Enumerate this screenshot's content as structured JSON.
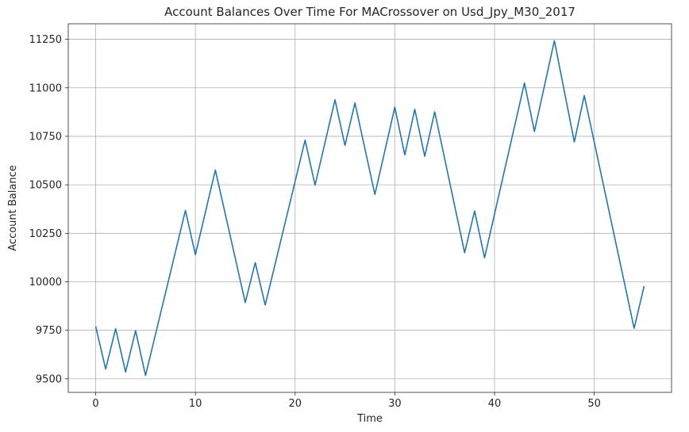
{
  "chart_data": {
    "type": "line",
    "title": "Account Balances Over Time For MACrossover on Usd_Jpy_M30_2017",
    "xlabel": "Time",
    "ylabel": "Account Balance",
    "xlim": [
      -2.75,
      57.75
    ],
    "ylim": [
      9430,
      11330
    ],
    "xticks": [
      0,
      10,
      20,
      30,
      40,
      50
    ],
    "yticks": [
      9500,
      9750,
      10000,
      10250,
      10500,
      10750,
      11000,
      11250
    ],
    "grid": true,
    "line_color": "#1f77b4",
    "series": [
      {
        "x": [
          0,
          1,
          2,
          3,
          4,
          5,
          9,
          10,
          12,
          15,
          16,
          17,
          21,
          22,
          24,
          25,
          26,
          28,
          30,
          31,
          32,
          33,
          34,
          37,
          38,
          39,
          43,
          44,
          46,
          48,
          49,
          54,
          55
        ],
        "values": [
          9770,
          9550,
          9758,
          9535,
          9748,
          9517,
          10368,
          10140,
          10576,
          9893,
          10099,
          9880,
          10730,
          10498,
          10938,
          10703,
          10922,
          10450,
          10900,
          10654,
          10889,
          10647,
          10876,
          10150,
          10365,
          10124,
          11025,
          10775,
          11243,
          10721,
          10960,
          9760,
          9978
        ]
      }
    ]
  }
}
